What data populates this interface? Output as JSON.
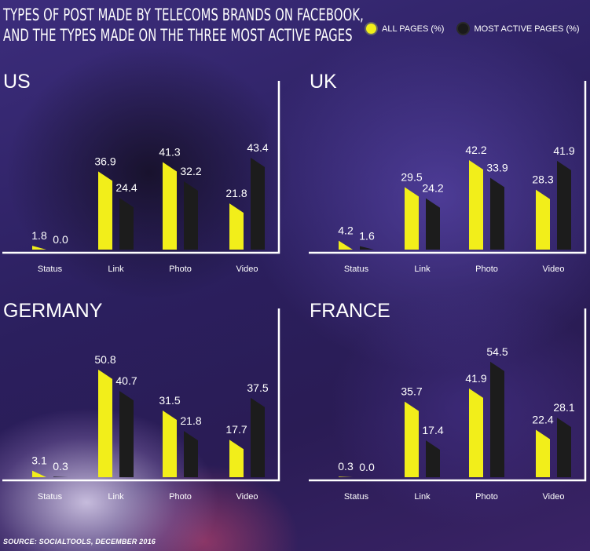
{
  "title": {
    "line1": "TYPES OF POST MADE BY TELECOMS BRANDS ON FACEBOOK,",
    "line2": "AND THE TYPES MADE ON THE THREE MOST ACTIVE PAGES"
  },
  "legend": {
    "all_pages": "ALL PAGES (%)",
    "most_active": "MOST ACTIVE PAGES (%)"
  },
  "colors": {
    "all_pages": "#f2ee1a",
    "most_active": "#1c1c1c"
  },
  "source": "SOURCE: SOCIALTOOLS, DECEMBER 2016",
  "chart_data": [
    {
      "type": "bar",
      "title": "US",
      "categories": [
        "Status",
        "Link",
        "Photo",
        "Video"
      ],
      "series": [
        {
          "name": "ALL PAGES (%)",
          "values": [
            1.8,
            36.9,
            41.3,
            21.8
          ]
        },
        {
          "name": "MOST ACTIVE PAGES (%)",
          "values": [
            0.0,
            24.4,
            32.2,
            43.4
          ]
        }
      ],
      "legend": "top-right"
    },
    {
      "type": "bar",
      "title": "UK",
      "categories": [
        "Status",
        "Link",
        "Photo",
        "Video"
      ],
      "series": [
        {
          "name": "ALL PAGES (%)",
          "values": [
            4.2,
            29.5,
            42.2,
            28.3
          ]
        },
        {
          "name": "MOST ACTIVE PAGES (%)",
          "values": [
            1.6,
            24.2,
            33.9,
            41.9
          ]
        }
      ],
      "legend": "top-right"
    },
    {
      "type": "bar",
      "title": "GERMANY",
      "categories": [
        "Status",
        "Link",
        "Photo",
        "Video"
      ],
      "series": [
        {
          "name": "ALL PAGES (%)",
          "values": [
            3.1,
            50.8,
            31.5,
            17.7
          ]
        },
        {
          "name": "MOST ACTIVE PAGES (%)",
          "values": [
            0.3,
            40.7,
            21.8,
            37.5
          ]
        }
      ],
      "legend": "top-right"
    },
    {
      "type": "bar",
      "title": "FRANCE",
      "categories": [
        "Status",
        "Link",
        "Photo",
        "Video"
      ],
      "series": [
        {
          "name": "ALL PAGES (%)",
          "values": [
            0.3,
            35.7,
            41.9,
            22.4
          ]
        },
        {
          "name": "MOST ACTIVE PAGES (%)",
          "values": [
            0.0,
            17.4,
            54.5,
            28.1
          ]
        }
      ],
      "legend": "top-right"
    }
  ]
}
